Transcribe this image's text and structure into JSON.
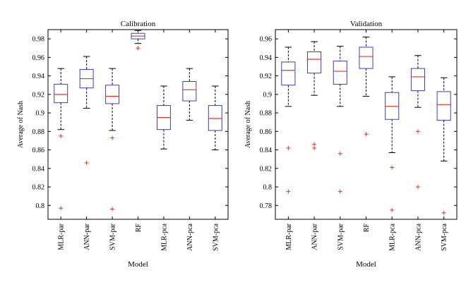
{
  "chart_data": [
    {
      "type": "box",
      "title": "Calibration",
      "xlabel": "Model",
      "ylabel": "Average of Nash",
      "categories": [
        "MLR-par",
        "ANN-par",
        "SVM-par",
        "RF",
        "MLR-pca",
        "ANN-pca",
        "SVM-pca"
      ],
      "ylim": [
        0.785,
        0.99
      ],
      "yticks": [
        0.8,
        0.82,
        0.84,
        0.86,
        0.88,
        0.9,
        0.92,
        0.94,
        0.96,
        0.98
      ],
      "ytick_labels": [
        "0.8",
        "0.82",
        "0.84",
        "0.86",
        "0.88",
        "0.9",
        "0.92",
        "0.94",
        "0.96",
        "0.98"
      ],
      "boxes": [
        {
          "whisker_low": 0.882,
          "q1": 0.911,
          "median": 0.92,
          "q3": 0.931,
          "whisker_high": 0.948,
          "outliers": [
            0.875,
            0.797
          ]
        },
        {
          "whisker_low": 0.905,
          "q1": 0.927,
          "median": 0.937,
          "q3": 0.947,
          "whisker_high": 0.961,
          "outliers": [
            0.846
          ]
        },
        {
          "whisker_low": 0.881,
          "q1": 0.91,
          "median": 0.918,
          "q3": 0.93,
          "whisker_high": 0.948,
          "outliers": [
            0.873,
            0.796
          ]
        },
        {
          "whisker_low": 0.975,
          "q1": 0.98,
          "median": 0.983,
          "q3": 0.986,
          "whisker_high": 0.989,
          "outliers": [
            0.97
          ]
        },
        {
          "whisker_low": 0.861,
          "q1": 0.882,
          "median": 0.895,
          "q3": 0.908,
          "whisker_high": 0.929,
          "outliers": []
        },
        {
          "whisker_low": 0.892,
          "q1": 0.913,
          "median": 0.925,
          "q3": 0.934,
          "whisker_high": 0.948,
          "outliers": []
        },
        {
          "whisker_low": 0.86,
          "q1": 0.881,
          "median": 0.894,
          "q3": 0.908,
          "whisker_high": 0.929,
          "outliers": []
        }
      ]
    },
    {
      "type": "box",
      "title": "Validation",
      "xlabel": "Model",
      "ylabel": "Average of Nash",
      "categories": [
        "MLR-par",
        "ANN-par",
        "SVM-par",
        "RF",
        "MLR-pca",
        "ANN-pca",
        "SVM-pca"
      ],
      "ylim": [
        0.765,
        0.97
      ],
      "yticks": [
        0.78,
        0.8,
        0.82,
        0.84,
        0.86,
        0.88,
        0.9,
        0.92,
        0.94,
        0.96
      ],
      "ytick_labels": [
        "0.78",
        "0.8",
        "0.82",
        "0.84",
        "0.86",
        "0.88",
        "0.9",
        "0.92",
        "0.94",
        "0.96"
      ],
      "boxes": [
        {
          "whisker_low": 0.887,
          "q1": 0.91,
          "median": 0.926,
          "q3": 0.935,
          "whisker_high": 0.951,
          "outliers": [
            0.842,
            0.795
          ]
        },
        {
          "whisker_low": 0.899,
          "q1": 0.923,
          "median": 0.938,
          "q3": 0.946,
          "whisker_high": 0.957,
          "outliers": [
            0.846,
            0.842
          ]
        },
        {
          "whisker_low": 0.887,
          "q1": 0.911,
          "median": 0.925,
          "q3": 0.936,
          "whisker_high": 0.952,
          "outliers": [
            0.836,
            0.795
          ]
        },
        {
          "whisker_low": 0.898,
          "q1": 0.928,
          "median": 0.941,
          "q3": 0.951,
          "whisker_high": 0.962,
          "outliers": [
            0.857
          ]
        },
        {
          "whisker_low": 0.837,
          "q1": 0.873,
          "median": 0.887,
          "q3": 0.902,
          "whisker_high": 0.919,
          "outliers": [
            0.821,
            0.775
          ]
        },
        {
          "whisker_low": 0.886,
          "q1": 0.904,
          "median": 0.919,
          "q3": 0.928,
          "whisker_high": 0.942,
          "outliers": [
            0.86,
            0.8
          ]
        },
        {
          "whisker_low": 0.828,
          "q1": 0.872,
          "median": 0.889,
          "q3": 0.903,
          "whisker_high": 0.918,
          "outliers": [
            0.772
          ]
        }
      ]
    }
  ],
  "colors": {
    "box": "#3b3bc8",
    "median": "#e8341c",
    "outlier": "#e8341c",
    "whisker": "#000000",
    "axes": "#000000"
  }
}
